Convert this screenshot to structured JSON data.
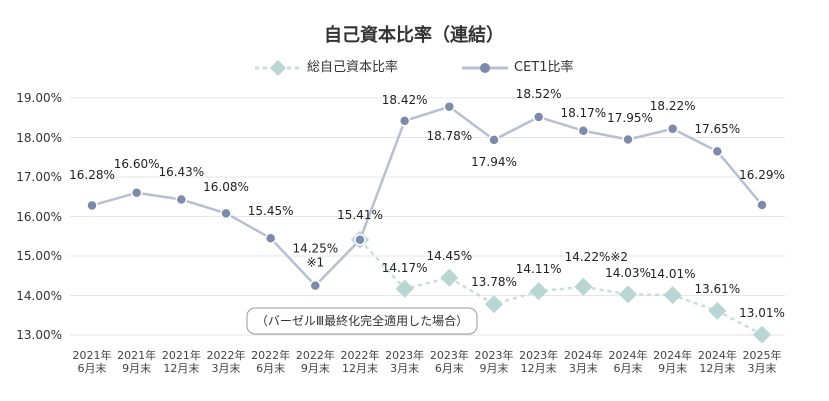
{
  "chart_data": {
    "type": "line",
    "title": "自己資本比率（連結）",
    "annotation": "（バーゼルⅢ最終化完全適用した場合）",
    "categories": [
      "2021年\n6月末",
      "2021年\n9月末",
      "2021年\n12月末",
      "2022年\n3月末",
      "2022年\n6月末",
      "2022年\n9月末",
      "2022年\n12月末",
      "2023年\n3月末",
      "2023年\n6月末",
      "2023年\n9月末",
      "2023年\n12月末",
      "2024年\n3月末",
      "2024年\n6月末",
      "2024年\n9月末",
      "2024年\n12月末",
      "2025年\n3月末"
    ],
    "series": [
      {
        "name": "総自己資本比率",
        "color": "#b9d6d4",
        "marker": "diamond",
        "dashed": true,
        "values": [
          null,
          null,
          null,
          null,
          null,
          null,
          15.41,
          14.17,
          14.45,
          13.78,
          14.11,
          14.22,
          14.03,
          14.01,
          13.61,
          13.01
        ],
        "value_labels": [
          null,
          null,
          null,
          null,
          null,
          null,
          null,
          "14.17%",
          "14.45%",
          "13.78%",
          "14.11%",
          "14.22%※2",
          "14.03%",
          "14.01%",
          "13.61%",
          "13.01%"
        ]
      },
      {
        "name": "CET1比率",
        "color": "#7d8aab",
        "marker": "circle",
        "dashed": false,
        "values": [
          16.28,
          16.6,
          16.43,
          16.08,
          15.45,
          14.25,
          15.41,
          18.42,
          18.78,
          17.94,
          18.52,
          18.17,
          17.95,
          18.22,
          17.65,
          16.29
        ],
        "value_labels": [
          "16.28%",
          "16.60%",
          "16.43%",
          "16.08%",
          "15.45%",
          "14.25%\n※1",
          "15.41%",
          "18.42%",
          "18.78%",
          "17.94%",
          "18.52%",
          "18.17%",
          "17.95%",
          "18.22%",
          "17.65%",
          "16.29%"
        ]
      }
    ],
    "ylim": [
      13,
      19
    ],
    "yticks": [
      {
        "value": 13,
        "label": "13.00%"
      },
      {
        "value": 14,
        "label": "14.00%"
      },
      {
        "value": 15,
        "label": "15.00%"
      },
      {
        "value": 16,
        "label": "16.00%"
      },
      {
        "value": 17,
        "label": "17.00%"
      },
      {
        "value": 18,
        "label": "18.00%"
      },
      {
        "value": 19,
        "label": "19.00%"
      }
    ],
    "grid": true
  }
}
